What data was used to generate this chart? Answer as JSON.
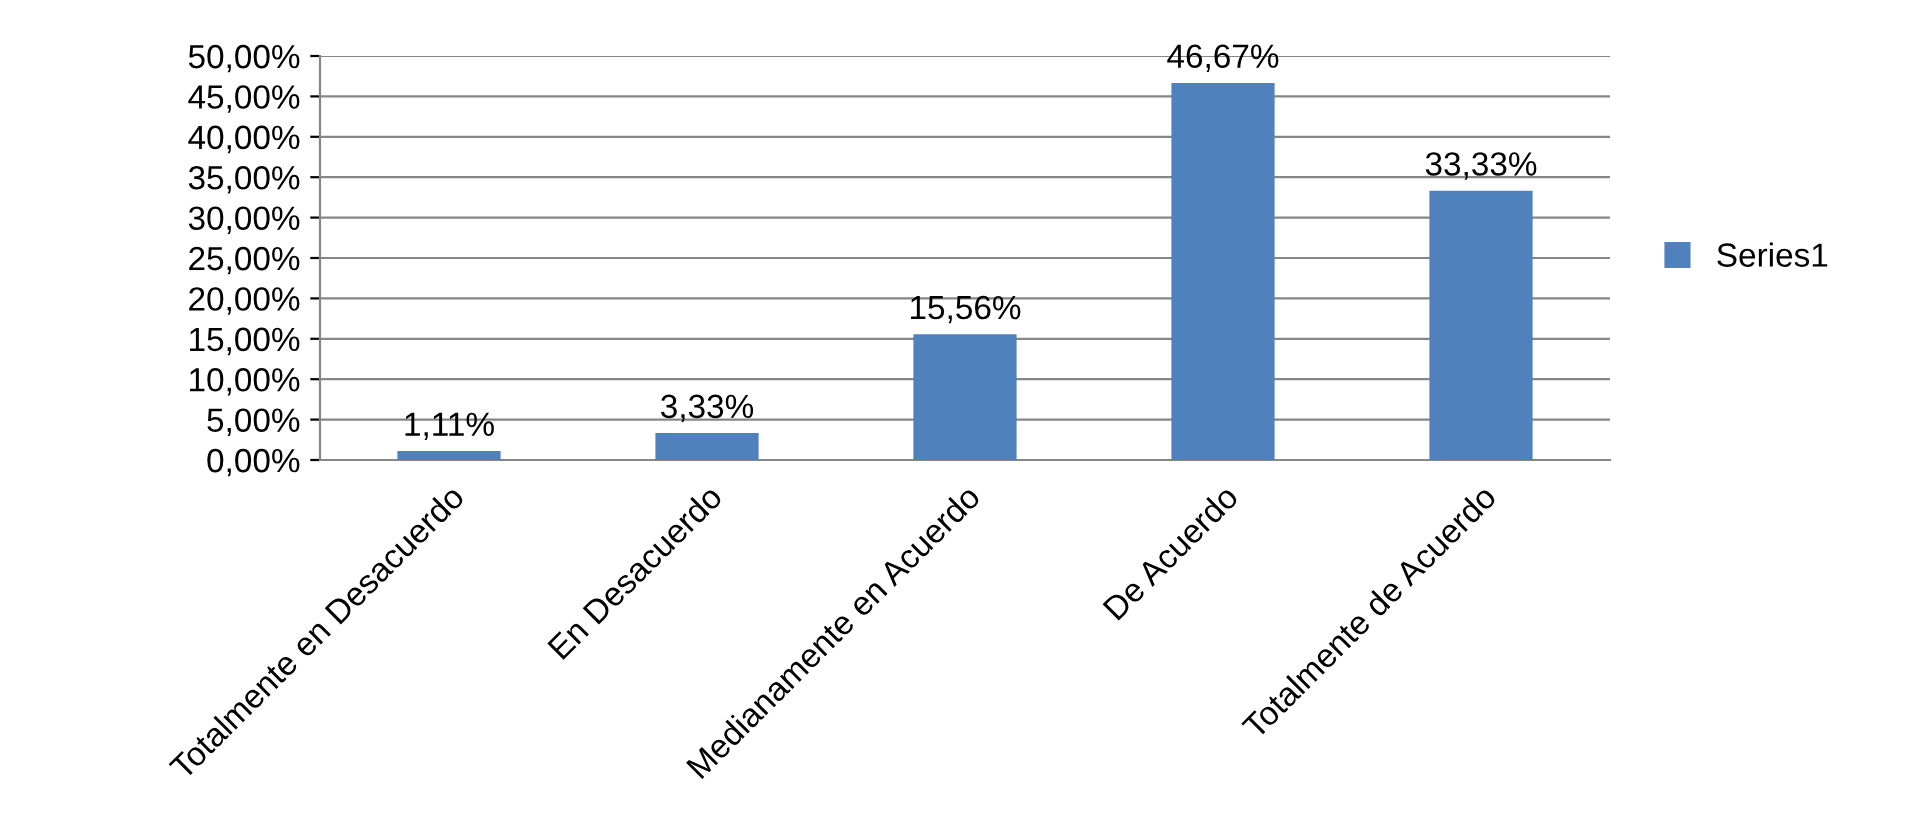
{
  "chart_data": {
    "type": "bar",
    "categories": [
      "Totalmente en Desacuerdo",
      "En Desacuerdo",
      "Medianamente en Acuerdo",
      "De Acuerdo",
      "Totalmente de Acuerdo"
    ],
    "series": [
      {
        "name": "Series1",
        "color": "#4f81bd",
        "values": [
          1.11,
          3.33,
          15.56,
          46.67,
          33.33
        ],
        "value_labels": [
          "1,11%",
          "3,33%",
          "15,56%",
          "46,67%",
          "33,33%"
        ]
      }
    ],
    "ylim": [
      0,
      50
    ],
    "yticks": [
      {
        "value": 0,
        "label": "0,00%"
      },
      {
        "value": 5,
        "label": "5,00%"
      },
      {
        "value": 10,
        "label": "10,00%"
      },
      {
        "value": 15,
        "label": "15,00%"
      },
      {
        "value": 20,
        "label": "20,00%"
      },
      {
        "value": 25,
        "label": "25,00%"
      },
      {
        "value": 30,
        "label": "30,00%"
      },
      {
        "value": 35,
        "label": "35,00%"
      },
      {
        "value": 40,
        "label": "40,00%"
      },
      {
        "value": 45,
        "label": "45,00%"
      },
      {
        "value": 50,
        "label": "50,00%"
      }
    ],
    "grid": "y",
    "legend": "right"
  }
}
